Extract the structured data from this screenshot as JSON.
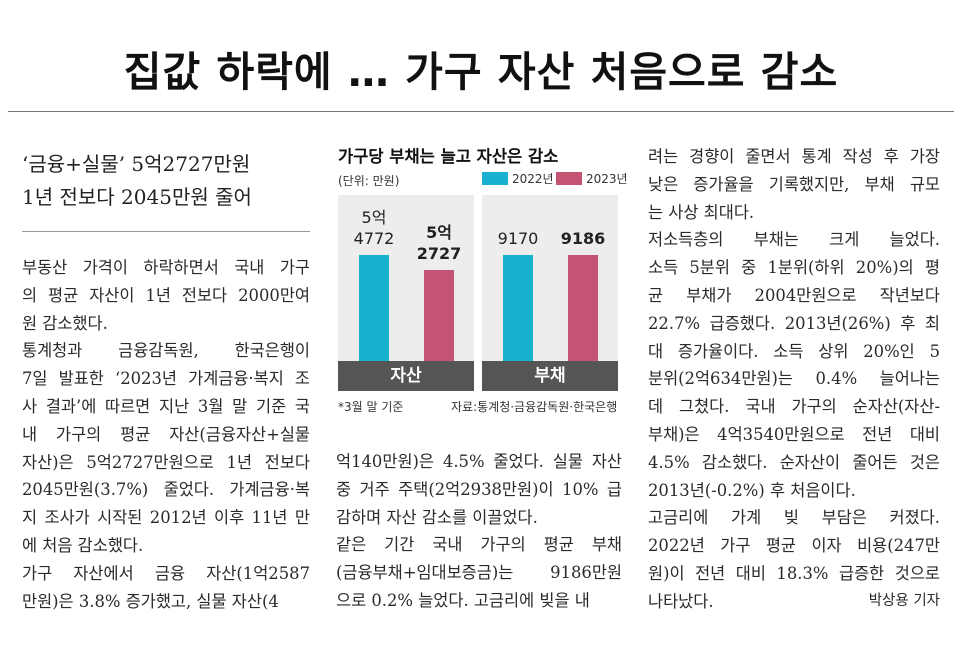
{
  "headline": "집값 하락에 … 가구 자산 처음으로 감소",
  "subheadline": [
    "‘금융+실물’ 5억2727만원",
    "1년 전보다 2045만원 줄어"
  ],
  "column1": [
    "부동산 가격이 하락하면서 국내 가구",
    "의 평균 자산이 1년 전보다 2000만여",
    "원 감소했다.",
    "  통계청과 금융감독원, 한국은행이",
    "7일 발표한 ‘2023년 가계금융·복지 조",
    "사 결과’에 따르면 지난 3월 말 기준 국",
    "내 가구의 평균 자산(금융자산+실물",
    "자산)은 5억2727만원으로 1년 전보다",
    "2045만원(3.7%) 줄었다. 가계금융·복",
    "지 조사가 시작된 2012년 이후 11년 만",
    "에 처음 감소했다.",
    "  가구 자산에서 금융 자산(1억2587",
    "만원)은 3.8% 증가했고, 실물 자산(4"
  ],
  "column2": [
    "억140만원)은 4.5% 줄었다. 실물 자산",
    "중 거주 주택(2억2938만원)이 10% 급",
    "감하며 자산 감소를 이끌었다.",
    "  같은 기간 국내 가구의 평균 부채",
    "(금융부채+임대보증금)는 9186만원",
    "으로 0.2% 늘었다. 고금리에 빚을 내"
  ],
  "column3": [
    "려는 경향이 줄면서 통계 작성 후 가장",
    "낮은 증가율을 기록했지만, 부채 규모",
    "는 사상 최대다.",
    "  저소득층의 부채는 크게 늘었다.",
    "소득 5분위 중 1분위(하위 20%)의 평",
    "균 부채가 2004만원으로 작년보다",
    "22.7% 급증했다. 2013년(26%) 후 최",
    "대 증가율이다. 소득 상위 20%인 5",
    "분위(2억634만원)는 0.4% 늘어나는",
    "데 그쳤다. 국내 가구의 순자산(자산-",
    "부채)은 4억3540만원으로 전년 대비",
    "4.5% 감소했다. 순자산이 줄어든 것은",
    "2013년(-0.2%) 후 처음이다.",
    "  고금리에 가계 빚 부담은 커졌다.",
    "2022년 가구 평균 이자 비용(247만",
    "원)이 전년 대비 18.3% 급증한 것으로",
    "나타났다."
  ],
  "byline": "박상용 기자",
  "colors": {
    "y2022": "#1ab0cf",
    "y2023": "#c45474",
    "panel_bg": "#ededed",
    "panel_foot": "#555555"
  },
  "chart_data": {
    "type": "bar",
    "title": "가구당 부채는 늘고 자산은 감소",
    "unit": "(단위: 만원)",
    "series": [
      {
        "name": "2022년"
      },
      {
        "name": "2023년"
      }
    ],
    "groups": [
      {
        "category": "자산",
        "values": [
          54772,
          52727
        ],
        "labels": [
          "5억\n4772",
          "5억\n2727"
        ]
      },
      {
        "category": "부채",
        "values": [
          9170,
          9186
        ],
        "labels": [
          "9170",
          "9186"
        ]
      }
    ],
    "footnote": "*3월 말 기준",
    "source": "자료:통계청·금융감독원·한국은행"
  }
}
